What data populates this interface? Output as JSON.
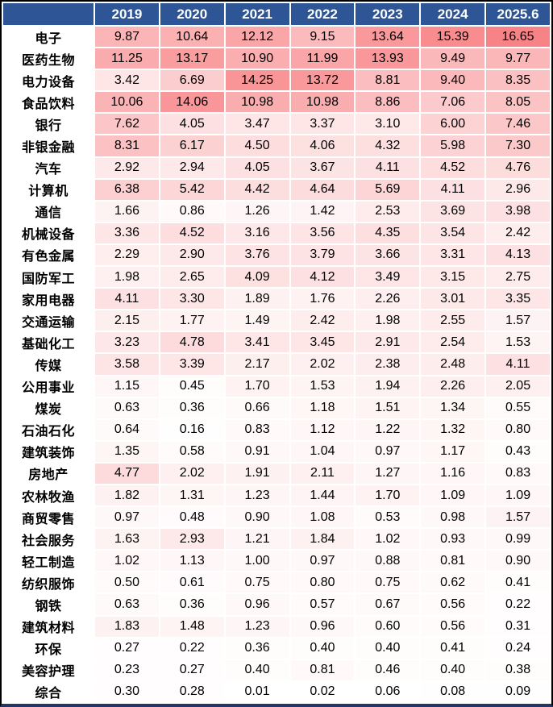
{
  "colors": {
    "header_bg": "#2E5697",
    "header_text": "#FFFFFF",
    "frame_border": "#000000",
    "bottom_line": "#1F3864",
    "heat_min_color": "#FFFFFF",
    "heat_max_color": "#F88386"
  },
  "chart_data": {
    "type": "heatmap",
    "title": "",
    "columns": [
      "2019",
      "2020",
      "2021",
      "2022",
      "2023",
      "2024",
      "2025.6"
    ],
    "color_scale": {
      "min": 0,
      "max": 16.65,
      "min_color": "#FFFFFF",
      "max_color": "#F88386"
    },
    "rows": [
      {
        "label": "电子",
        "values": [
          9.87,
          10.64,
          12.12,
          9.15,
          13.64,
          15.39,
          16.65
        ]
      },
      {
        "label": "医药生物",
        "values": [
          11.25,
          13.17,
          10.9,
          11.99,
          13.93,
          9.49,
          9.77
        ]
      },
      {
        "label": "电力设备",
        "values": [
          3.42,
          6.69,
          14.25,
          13.72,
          8.81,
          9.4,
          8.35
        ]
      },
      {
        "label": "食品饮料",
        "values": [
          10.06,
          14.06,
          10.98,
          10.98,
          8.86,
          7.06,
          8.05
        ]
      },
      {
        "label": "银行",
        "values": [
          7.62,
          4.05,
          3.47,
          3.37,
          3.1,
          6.0,
          7.46
        ]
      },
      {
        "label": "非银金融",
        "values": [
          8.31,
          6.17,
          4.5,
          4.06,
          4.32,
          5.98,
          7.3
        ]
      },
      {
        "label": "汽车",
        "values": [
          2.92,
          2.94,
          4.05,
          3.67,
          4.11,
          4.52,
          4.76
        ]
      },
      {
        "label": "计算机",
        "values": [
          6.38,
          5.42,
          4.42,
          4.64,
          5.69,
          4.11,
          2.96
        ]
      },
      {
        "label": "通信",
        "values": [
          1.66,
          0.86,
          1.26,
          1.42,
          2.53,
          3.69,
          3.98
        ]
      },
      {
        "label": "机械设备",
        "values": [
          3.36,
          4.52,
          3.16,
          3.56,
          4.35,
          3.54,
          2.42
        ]
      },
      {
        "label": "有色金属",
        "values": [
          2.29,
          2.9,
          3.76,
          3.79,
          3.66,
          3.31,
          4.13
        ]
      },
      {
        "label": "国防军工",
        "values": [
          1.98,
          2.65,
          4.09,
          4.12,
          3.49,
          3.15,
          2.75
        ]
      },
      {
        "label": "家用电器",
        "values": [
          4.11,
          3.3,
          1.89,
          1.76,
          2.26,
          3.01,
          3.35
        ]
      },
      {
        "label": "交通运输",
        "values": [
          2.15,
          1.77,
          1.49,
          2.42,
          1.98,
          2.55,
          1.57
        ]
      },
      {
        "label": "基础化工",
        "values": [
          3.23,
          4.78,
          3.41,
          3.45,
          2.91,
          2.54,
          1.53
        ]
      },
      {
        "label": "传媒",
        "values": [
          3.58,
          3.39,
          2.17,
          2.02,
          2.38,
          2.48,
          4.11
        ]
      },
      {
        "label": "公用事业",
        "values": [
          1.15,
          0.45,
          1.7,
          1.53,
          1.94,
          2.26,
          2.05
        ]
      },
      {
        "label": "煤炭",
        "values": [
          0.63,
          0.36,
          0.66,
          1.18,
          1.51,
          1.34,
          0.55
        ]
      },
      {
        "label": "石油石化",
        "values": [
          0.64,
          0.16,
          0.83,
          1.12,
          1.22,
          1.32,
          0.8
        ]
      },
      {
        "label": "建筑装饰",
        "values": [
          1.35,
          0.58,
          0.91,
          1.04,
          0.97,
          1.17,
          0.43
        ]
      },
      {
        "label": "房地产",
        "values": [
          4.77,
          2.02,
          1.91,
          2.11,
          1.27,
          1.16,
          0.83
        ]
      },
      {
        "label": "农林牧渔",
        "values": [
          1.82,
          1.31,
          1.23,
          1.44,
          1.7,
          1.09,
          1.09
        ]
      },
      {
        "label": "商贸零售",
        "values": [
          0.97,
          0.48,
          0.9,
          1.08,
          0.53,
          0.98,
          1.57
        ]
      },
      {
        "label": "社会服务",
        "values": [
          1.63,
          2.93,
          1.21,
          1.84,
          1.02,
          0.93,
          0.99
        ]
      },
      {
        "label": "轻工制造",
        "values": [
          1.02,
          1.13,
          1.0,
          0.97,
          0.88,
          0.81,
          0.9
        ]
      },
      {
        "label": "纺织服饰",
        "values": [
          0.5,
          0.61,
          0.75,
          0.8,
          0.75,
          0.62,
          0.41
        ]
      },
      {
        "label": "钢铁",
        "values": [
          0.63,
          0.36,
          0.96,
          0.57,
          0.67,
          0.56,
          0.22
        ]
      },
      {
        "label": "建筑材料",
        "values": [
          1.83,
          1.48,
          1.23,
          0.96,
          0.6,
          0.56,
          0.31
        ]
      },
      {
        "label": "环保",
        "values": [
          0.27,
          0.22,
          0.36,
          0.4,
          0.4,
          0.41,
          0.24
        ]
      },
      {
        "label": "美容护理",
        "values": [
          0.23,
          0.27,
          0.4,
          0.81,
          0.46,
          0.4,
          0.38
        ]
      },
      {
        "label": "综合",
        "values": [
          0.3,
          0.28,
          0.01,
          0.02,
          0.06,
          0.08,
          0.09
        ]
      }
    ]
  }
}
